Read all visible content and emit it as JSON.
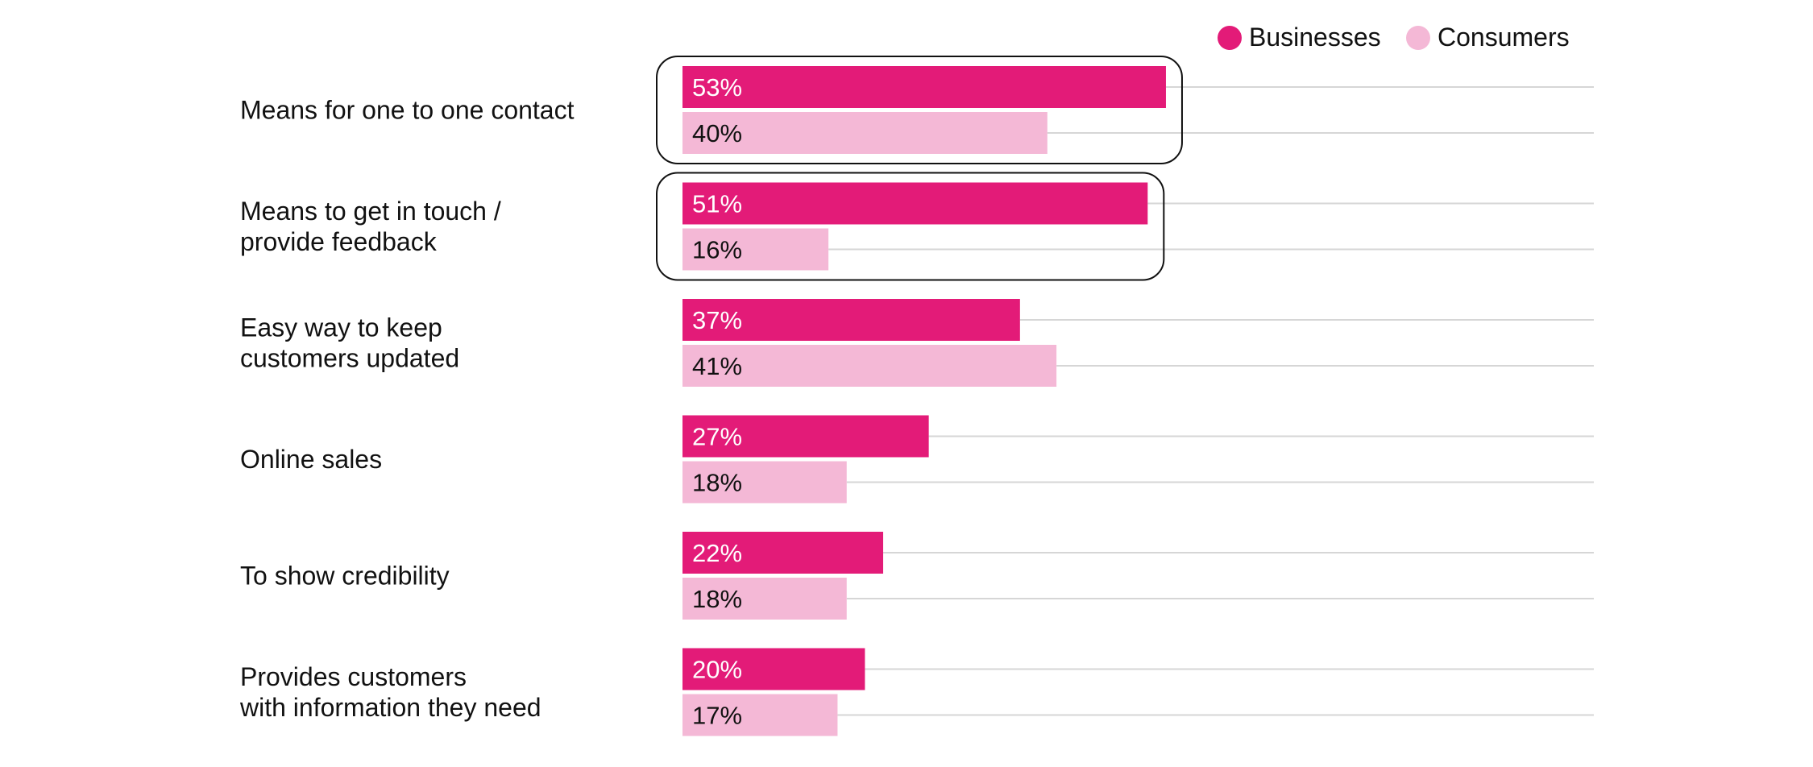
{
  "chart_data": {
    "type": "bar",
    "orientation": "horizontal",
    "title": "",
    "xlabel": "",
    "ylabel": "",
    "xlim": [
      0,
      100
    ],
    "grid": true,
    "legend_position": "top-right",
    "value_suffix": "%",
    "categories": [
      [
        "Means for one to one contact"
      ],
      [
        "Means to get in touch /",
        "provide feedback"
      ],
      [
        "Easy way to keep",
        "customers updated"
      ],
      [
        "Online sales"
      ],
      [
        "To show credibility"
      ],
      [
        "Provides customers",
        "with information they need"
      ]
    ],
    "series": [
      {
        "name": "Businesses",
        "color": "#e31b78",
        "label_color": "#ffffff",
        "values": [
          53,
          51,
          37,
          27,
          22,
          20
        ]
      },
      {
        "name": "Consumers",
        "color": "#f4b8d6",
        "label_color": "#111111",
        "values": [
          40,
          16,
          41,
          18,
          18,
          17
        ]
      }
    ],
    "highlighted_categories": [
      0,
      1
    ]
  }
}
